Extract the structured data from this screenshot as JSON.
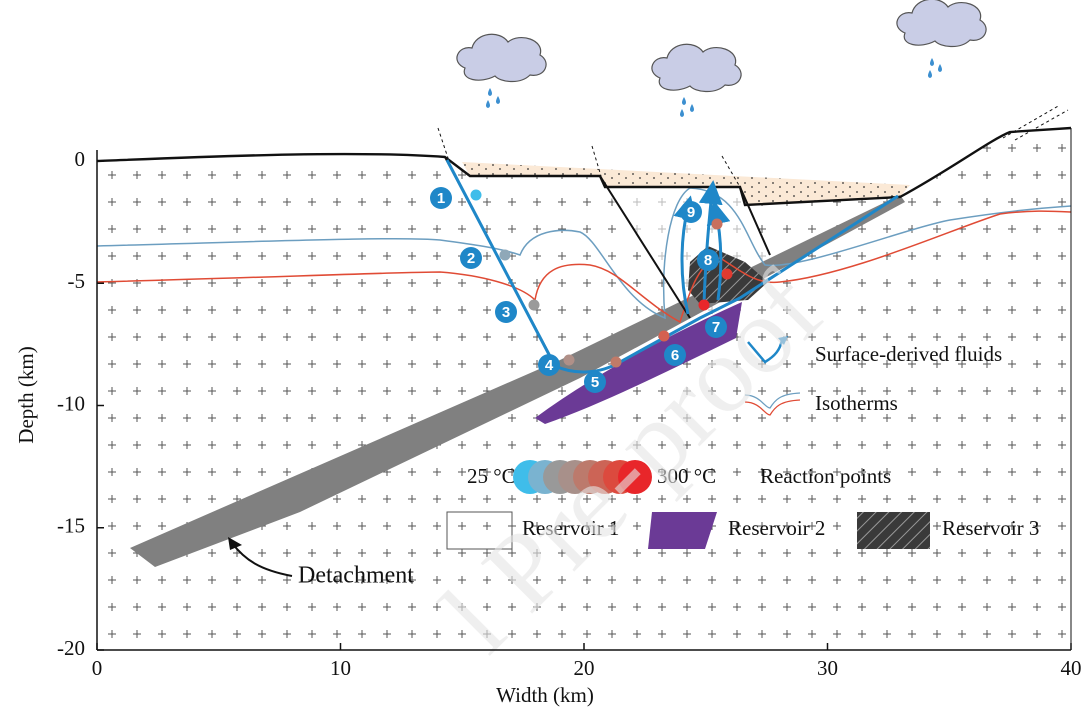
{
  "axes": {
    "x_label": "Width (km)",
    "y_label": "Depth (km)",
    "xlim": [
      0,
      40
    ],
    "ylim": [
      -20,
      0
    ],
    "xticks": [
      0,
      10,
      20,
      30,
      40
    ],
    "yticks": [
      -20,
      -15,
      -10,
      -5,
      0
    ]
  },
  "points": [
    "1",
    "2",
    "3",
    "4",
    "5",
    "6",
    "7",
    "8",
    "9"
  ],
  "labels": {
    "detachment": "Detachment"
  },
  "legend": {
    "fluids": "Surface-derived fluids",
    "isotherms": "Isotherms",
    "temp_min": "25 °C",
    "temp_max": "300 °C",
    "reaction_points": "Reaction points",
    "reservoir_1": "Reservoir 1",
    "reservoir_2": "Reservoir 2",
    "reservoir_3": "Reservoir 3"
  },
  "watermark": "l Pre-proof"
}
